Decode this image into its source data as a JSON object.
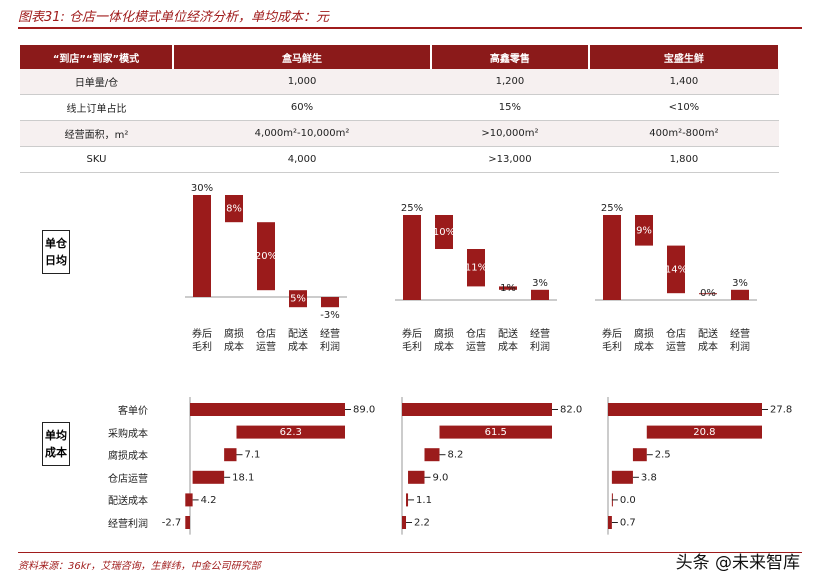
{
  "title": "图表31: 仓店一体化模式单位经济分析，单均成本：元",
  "table": {
    "header": [
      "“到店”“到家”模式",
      "盒马鲜生",
      "高鑫零售",
      "宝盛生鲜"
    ],
    "rows": [
      [
        "日单量/仓",
        "1,000",
        "1,200",
        "1,400"
      ],
      [
        "线上订单占比",
        "60%",
        "15%",
        "<10%"
      ],
      [
        "经营面积，m²",
        "4,000m²-10,000m²",
        ">10,000m²",
        "400m²-800m²"
      ],
      [
        "SKU",
        "4,000",
        ">13,000",
        "1,800"
      ]
    ]
  },
  "row_labels": [
    "单仓日均",
    "单均成本"
  ],
  "chart_data": [
    {
      "type": "waterfall",
      "orientation": "vertical",
      "color": "#9b1b1b",
      "categories": [
        "券后毛利",
        "腐损成本",
        "仓店运营",
        "配送成本",
        "经营利润"
      ],
      "values": [
        30,
        8,
        20,
        5,
        -3
      ],
      "value_labels": [
        "30%",
        "8%",
        "20%",
        "5%",
        "-3%"
      ]
    },
    {
      "type": "waterfall",
      "orientation": "vertical",
      "color": "#9b1b1b",
      "categories": [
        "券后毛利",
        "腐损成本",
        "仓店运营",
        "配送成本",
        "经营利润"
      ],
      "values": [
        25,
        10,
        11,
        1,
        3
      ],
      "value_labels": [
        "25%",
        "10%",
        "11%",
        "1%",
        "3%"
      ]
    },
    {
      "type": "waterfall",
      "orientation": "vertical",
      "color": "#9b1b1b",
      "categories": [
        "券后毛利",
        "腐损成本",
        "仓店运营",
        "配送成本",
        "经营利润"
      ],
      "values": [
        25,
        9,
        14,
        0,
        3
      ],
      "value_labels": [
        "25%",
        "9%",
        "14%",
        "0%",
        "3%"
      ]
    },
    {
      "type": "waterfall",
      "orientation": "horizontal",
      "color": "#9b1b1b",
      "categories": [
        "客单价",
        "采购成本",
        "腐损成本",
        "仓店运营",
        "配送成本",
        "经营利润"
      ],
      "values": [
        89.0,
        62.3,
        7.1,
        18.1,
        4.2,
        -2.7
      ],
      "value_labels": [
        "89.0",
        "62.3",
        "7.1",
        "18.1",
        "4.2",
        "-2.7"
      ]
    },
    {
      "type": "waterfall",
      "orientation": "horizontal",
      "color": "#9b1b1b",
      "values": [
        82.0,
        61.5,
        8.2,
        9.0,
        1.1,
        2.2
      ],
      "value_labels": [
        "82.0",
        "61.5",
        "8.2",
        "9.0",
        "1.1",
        "2.2"
      ]
    },
    {
      "type": "waterfall",
      "orientation": "horizontal",
      "color": "#9b1b1b",
      "values": [
        27.8,
        20.8,
        2.5,
        3.8,
        0.0,
        0.7
      ],
      "value_labels": [
        "27.8",
        "20.8",
        "2.5",
        "3.8",
        "0.0",
        "0.7"
      ]
    }
  ],
  "source": "资料来源：36kr，艾瑞咨询，生鲜纬，中金公司研究部",
  "watermark": "头条 @未来智库"
}
